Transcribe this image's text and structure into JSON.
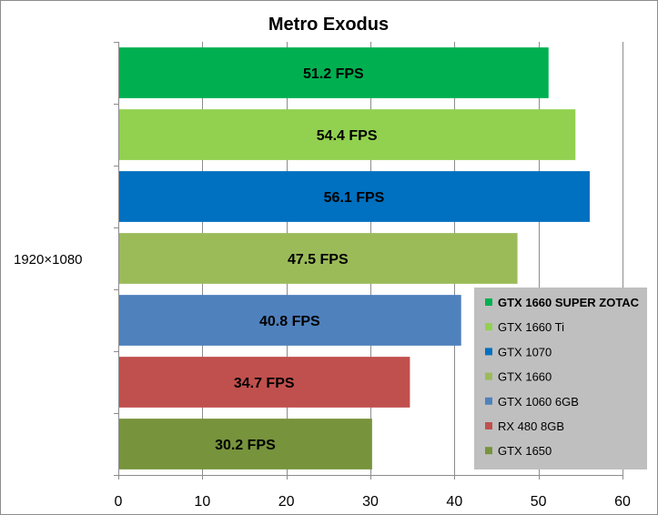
{
  "chart_data": {
    "type": "bar",
    "orientation": "horizontal",
    "title": "Metro Exodus",
    "categories": [
      "1920×1080"
    ],
    "xlim": [
      0,
      60
    ],
    "xticks": [
      0,
      10,
      20,
      30,
      40,
      50,
      60
    ],
    "grid": true,
    "legend_position": "bottom-right",
    "series": [
      {
        "name": "GTX 1660 SUPER ZOTAC",
        "values": [
          51.2
        ],
        "label": "51.2 FPS",
        "color": "#00b050",
        "bold": true
      },
      {
        "name": "GTX 1660 Ti",
        "values": [
          54.4
        ],
        "label": "54.4 FPS",
        "color": "#92d050",
        "bold": false
      },
      {
        "name": "GTX 1070",
        "values": [
          56.1
        ],
        "label": "56.1 FPS",
        "color": "#0070c0",
        "bold": false
      },
      {
        "name": "GTX 1660",
        "values": [
          47.5
        ],
        "label": "47.5 FPS",
        "color": "#9bbb59",
        "bold": false
      },
      {
        "name": "GTX 1060 6GB",
        "values": [
          40.8
        ],
        "label": "40.8 FPS",
        "color": "#4f81bd",
        "bold": false
      },
      {
        "name": "RX 480 8GB",
        "values": [
          34.7
        ],
        "label": "34.7 FPS",
        "color": "#c0504d",
        "bold": false
      },
      {
        "name": "GTX 1650",
        "values": [
          30.2
        ],
        "label": "30.2 FPS",
        "color": "#77933c",
        "bold": false
      }
    ]
  }
}
